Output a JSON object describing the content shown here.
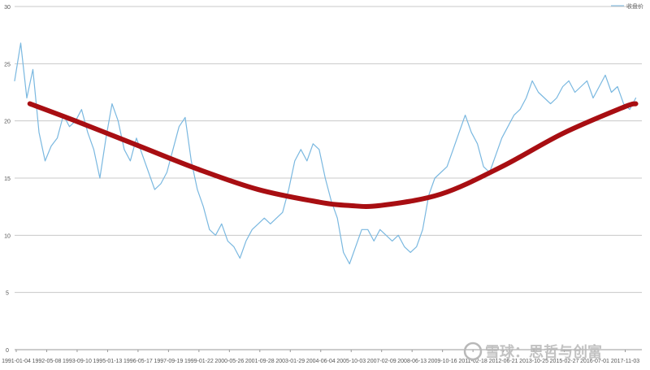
{
  "chart_data": {
    "type": "line",
    "title": "",
    "xlabel": "",
    "ylabel": "",
    "ylim": [
      0,
      30
    ],
    "y_ticks": [
      "0",
      "5",
      "10",
      "15",
      "20",
      "25",
      "30"
    ],
    "grid": true,
    "legend_position": "top-right",
    "x_tick_labels": [
      "1991-01-04",
      "1992-05-08",
      "1993-09-10",
      "1995-01-13",
      "1996-05-17",
      "1997-09-19",
      "1999-01-22",
      "2000-05-26",
      "2001-09-28",
      "2003-01-29",
      "2004-06-04",
      "2005-10-03",
      "2007-02-09",
      "2008-06-13",
      "2009-10-16",
      "2011-02-18",
      "2012-06-21",
      "2013-10-25",
      "2015-02-27",
      "2016-07-01",
      "2017-11-03"
    ],
    "series": [
      {
        "name": "收盘价",
        "color": "#7ab8e0",
        "x_index": [
          0,
          0.2,
          0.4,
          0.6,
          0.8,
          1.0,
          1.2,
          1.4,
          1.6,
          1.8,
          2.0,
          2.2,
          2.4,
          2.6,
          2.8,
          3.0,
          3.2,
          3.4,
          3.6,
          3.8,
          4.0,
          4.2,
          4.4,
          4.6,
          4.8,
          5.0,
          5.2,
          5.4,
          5.6,
          5.8,
          6.0,
          6.2,
          6.4,
          6.6,
          6.8,
          7.0,
          7.2,
          7.4,
          7.6,
          7.8,
          8.0,
          8.2,
          8.4,
          8.6,
          8.8,
          9.0,
          9.2,
          9.4,
          9.6,
          9.8,
          10.0,
          10.2,
          10.4,
          10.6,
          10.8,
          11.0,
          11.2,
          11.4,
          11.6,
          11.8,
          12.0,
          12.2,
          12.4,
          12.6,
          12.8,
          13.0,
          13.2,
          13.4,
          13.6,
          13.8,
          14.0,
          14.2,
          14.4,
          14.6,
          14.8,
          15.0,
          15.2,
          15.4,
          15.6,
          15.8,
          16.0,
          16.2,
          16.4,
          16.6,
          16.8,
          17.0,
          17.2,
          17.4,
          17.6,
          17.8,
          18.0,
          18.2,
          18.4,
          18.6,
          18.8,
          19.0,
          19.2,
          19.4,
          19.6,
          19.8,
          20.0,
          20.2,
          20.4
        ],
        "values": [
          23.5,
          26.8,
          22.0,
          24.5,
          19.0,
          16.5,
          17.8,
          18.5,
          20.5,
          19.5,
          20.0,
          21.0,
          19.0,
          17.5,
          15.0,
          18.5,
          21.5,
          20.0,
          17.5,
          16.5,
          18.5,
          17.0,
          15.5,
          14.0,
          14.5,
          15.5,
          17.5,
          19.5,
          20.3,
          16.5,
          14.0,
          12.5,
          10.5,
          10.0,
          11.0,
          9.5,
          9.0,
          8.0,
          9.5,
          10.5,
          11.0,
          11.5,
          11.0,
          11.5,
          12.0,
          14.0,
          16.5,
          17.5,
          16.5,
          18.0,
          17.5,
          15.0,
          13.0,
          11.5,
          8.5,
          7.5,
          9.0,
          10.5,
          10.5,
          9.5,
          10.5,
          10.0,
          9.5,
          10.0,
          9.0,
          8.5,
          9.0,
          10.5,
          13.5,
          15.0,
          15.5,
          16.0,
          17.5,
          19.0,
          20.5,
          19.0,
          18.0,
          16.0,
          15.5,
          17.0,
          18.5,
          19.5,
          20.5,
          21.0,
          22.0,
          23.5,
          22.5,
          22.0,
          21.5,
          22.0,
          23.0,
          23.5,
          22.5,
          23.0,
          23.5,
          22.0,
          23.0,
          24.0,
          22.5,
          23.0,
          21.5,
          21.0,
          22.0
        ]
      },
      {
        "name": "",
        "color": "#a80e12",
        "x_index": [
          0.5,
          2,
          4,
          6,
          8,
          10,
          11,
          12,
          14,
          16,
          18,
          20,
          20.4
        ],
        "values": [
          21.5,
          20.0,
          17.9,
          15.8,
          14.0,
          12.9,
          12.6,
          12.6,
          13.6,
          16.0,
          18.9,
          21.2,
          21.5
        ]
      }
    ]
  },
  "watermark": {
    "text": "雪球：思哲与创富"
  }
}
